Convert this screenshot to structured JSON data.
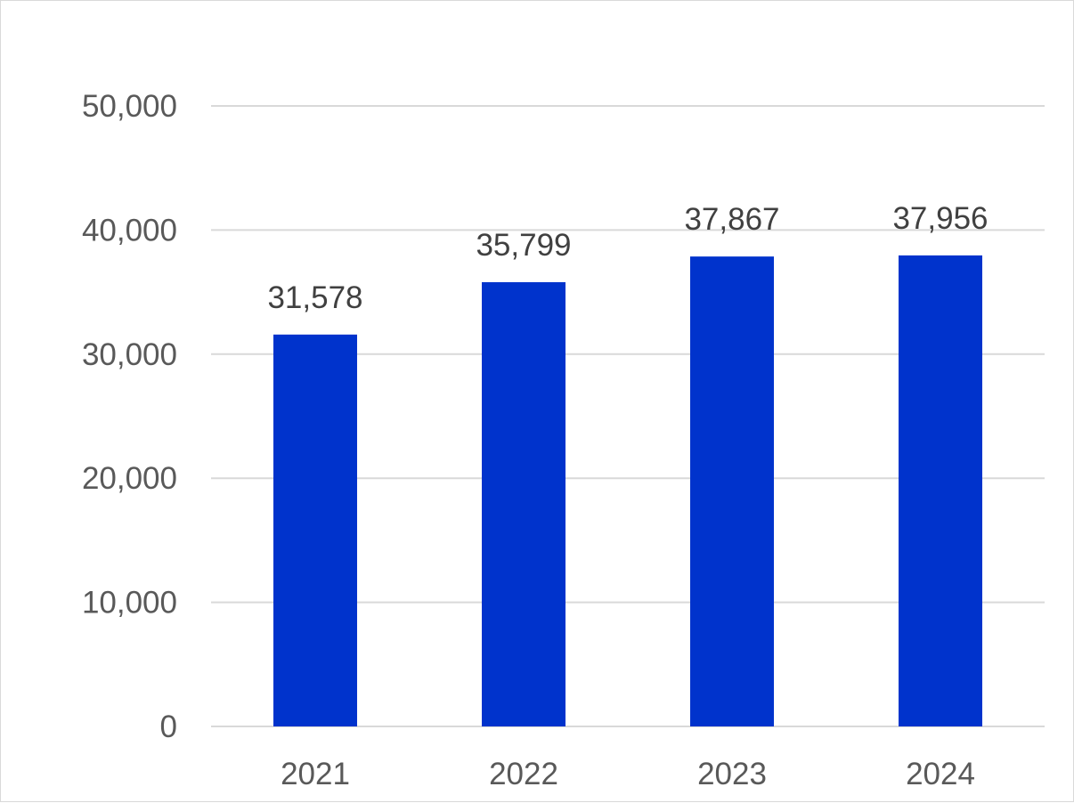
{
  "chart_data": {
    "type": "bar",
    "title": "",
    "xlabel": "",
    "ylabel": "",
    "categories": [
      "2021",
      "2022",
      "2023",
      "2024"
    ],
    "values": [
      31578,
      35799,
      37867,
      37956
    ],
    "data_labels": [
      "31,578",
      "35,799",
      "37,867",
      "37,956"
    ],
    "ylim": [
      0,
      50000
    ],
    "y_ticks": [
      0,
      10000,
      20000,
      30000,
      40000,
      50000
    ],
    "y_tick_labels": [
      "0",
      "10,000",
      "20,000",
      "30,000",
      "40,000",
      "50,000"
    ],
    "grid": true,
    "legend": "none",
    "bar_color": "#0033CC"
  }
}
